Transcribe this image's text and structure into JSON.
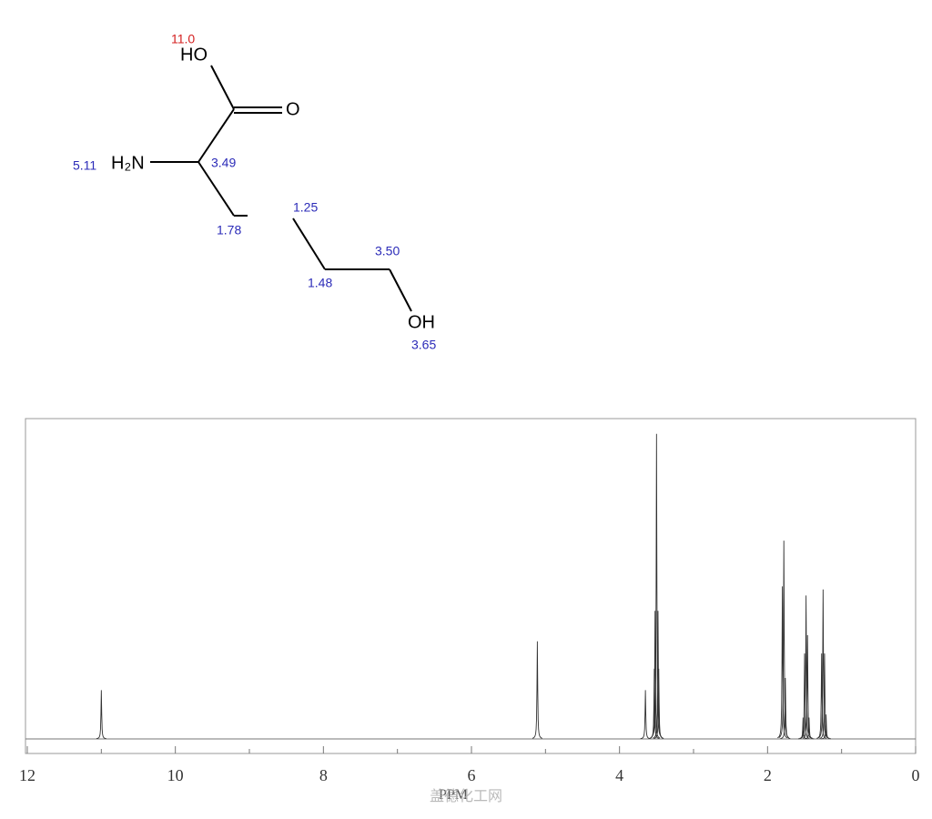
{
  "structure": {
    "atoms": [
      "HO",
      "O",
      "H₂N",
      "OH"
    ],
    "shifts": [
      "11.0",
      "5.11",
      "3.49",
      "1.78",
      "1.25",
      "1.48",
      "3.50",
      "3.65"
    ]
  },
  "chart_data": {
    "type": "spectrum",
    "x_label": "PPM",
    "watermark": "盖德化工网",
    "xlim": [
      12,
      0
    ],
    "xticks": [
      12,
      10,
      8,
      6,
      4,
      2,
      0
    ],
    "minor_xticks": [
      11,
      9,
      7,
      5,
      3,
      1
    ],
    "ylim": [
      0,
      105
    ],
    "color": "#333333",
    "x": [
      11.0,
      5.11,
      3.65,
      3.53,
      3.52,
      3.5,
      3.48,
      3.47,
      1.8,
      1.78,
      1.76,
      1.52,
      1.5,
      1.48,
      1.46,
      1.44,
      1.27,
      1.25,
      1.23,
      1.21
    ],
    "values": [
      16,
      32,
      16,
      23,
      42,
      100,
      42,
      23,
      50,
      65,
      20,
      7,
      28,
      47,
      34,
      7,
      28,
      49,
      28,
      8
    ]
  }
}
